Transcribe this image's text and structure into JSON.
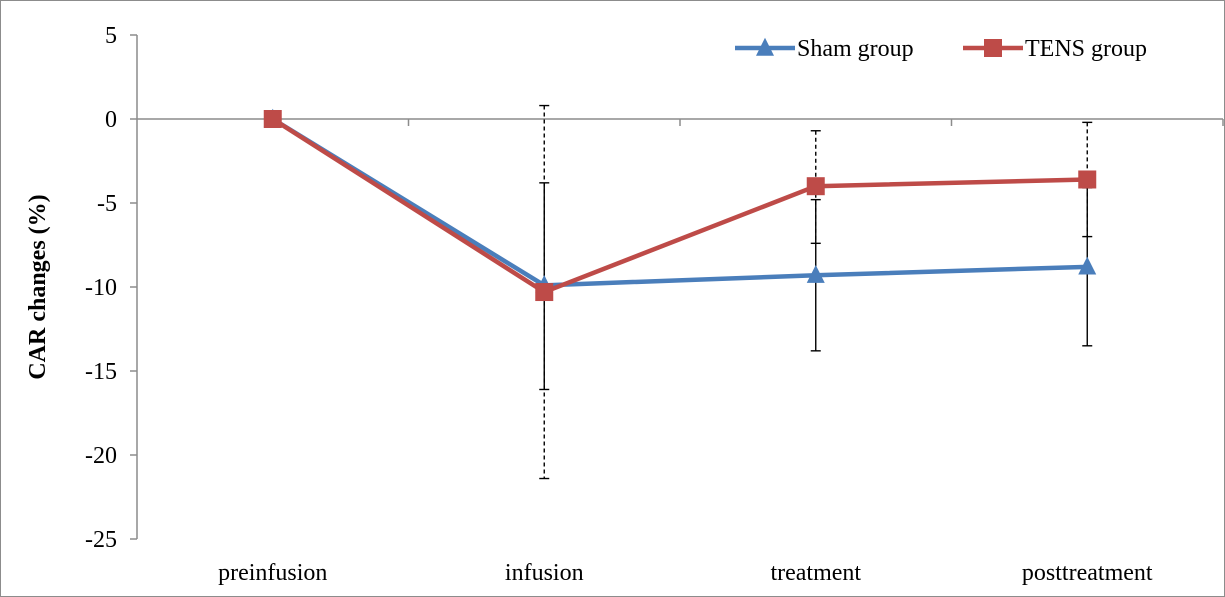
{
  "chart_data": {
    "type": "line",
    "categories": [
      "preinfusion",
      "infusion",
      "treatment",
      "posttreatment"
    ],
    "ylabel": "CAR changes (%)",
    "xlabel": "",
    "ylim": [
      -25,
      5
    ],
    "yticks": [
      5,
      0,
      -5,
      -10,
      -15,
      -20,
      -25
    ],
    "grid": false,
    "legend_position": "top-right",
    "series": [
      {
        "name": "Sham group",
        "color": "#4a7ebb",
        "marker": "triangle",
        "values": [
          0,
          -9.9,
          -9.3,
          -8.8
        ],
        "error_upper": [
          0,
          -3.8,
          -4.8,
          -4.1
        ],
        "error_lower": [
          0,
          -16.1,
          -13.8,
          -13.5
        ],
        "error_style": "solid"
      },
      {
        "name": "TENS group",
        "color": "#be4b48",
        "marker": "square",
        "values": [
          0,
          -10.3,
          -4.0,
          -3.6
        ],
        "error_upper": [
          0,
          0.8,
          -0.7,
          -0.2
        ],
        "error_lower": [
          0,
          -21.4,
          -7.4,
          -7.0
        ],
        "error_style": "dashed"
      }
    ]
  }
}
